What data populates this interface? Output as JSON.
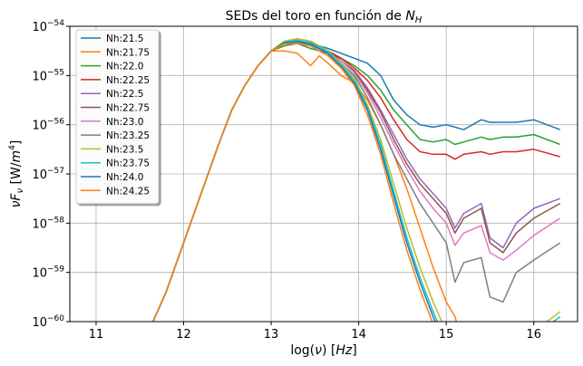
{
  "chart_data": {
    "type": "line",
    "title_parts": [
      "SEDs del toro en función de ",
      "N",
      "H"
    ],
    "xlabel_parts": [
      "log(",
      "ν",
      ") [",
      "Hz",
      "]"
    ],
    "ylabel_parts": [
      "ν",
      "F",
      "ν",
      " [W/",
      "m",
      "4",
      "]"
    ],
    "xlim": [
      10.7,
      16.5
    ],
    "ylim_exp": [
      -60,
      -54
    ],
    "y_scale": "log",
    "grid": true,
    "legend_position": "upper-left",
    "x_ticks": [
      "11",
      "12",
      "13",
      "14",
      "15",
      "16"
    ],
    "x_tick_values": [
      11,
      12,
      13,
      14,
      15,
      16
    ],
    "y_ticks": [
      {
        "base": "10",
        "exp": "−54",
        "value": -54
      },
      {
        "base": "10",
        "exp": "−55",
        "value": -55
      },
      {
        "base": "10",
        "exp": "−56",
        "value": -56
      },
      {
        "base": "10",
        "exp": "−57",
        "value": -57
      },
      {
        "base": "10",
        "exp": "−58",
        "value": -58
      },
      {
        "base": "10",
        "exp": "−59",
        "value": -59
      },
      {
        "base": "10",
        "exp": "−60",
        "value": -60
      }
    ],
    "x": [
      11.6,
      11.8,
      12.0,
      12.2,
      12.4,
      12.55,
      12.7,
      12.85,
      13.0,
      13.15,
      13.3,
      13.45,
      13.55,
      13.65,
      13.8,
      13.95,
      14.1,
      14.25,
      14.4,
      14.55,
      14.7,
      14.85,
      15.0,
      15.1,
      15.2,
      15.4,
      15.5,
      15.65,
      15.8,
      16.0,
      16.3
    ],
    "series": [
      {
        "name": "Nh:21.5",
        "color": "#1f77b4",
        "values": [
          -60.2,
          -59.4,
          -58.4,
          -57.4,
          -56.4,
          -55.7,
          -55.2,
          -54.8,
          -54.5,
          -54.35,
          -54.3,
          -54.35,
          -54.4,
          -54.45,
          -54.55,
          -54.65,
          -54.75,
          -55.0,
          -55.5,
          -55.8,
          -56.0,
          -56.05,
          -56.0,
          -56.05,
          -56.1,
          -55.9,
          -55.95,
          -55.95,
          -55.95,
          -55.9,
          -56.1
        ]
      },
      {
        "name": "Nh:21.75",
        "color": "#ff7f0e",
        "values": [
          -60.2,
          -59.4,
          -58.4,
          -57.4,
          -56.4,
          -55.7,
          -55.2,
          -54.8,
          -54.5,
          -54.5,
          -54.55,
          -54.8,
          -54.6,
          -54.75,
          -55.0,
          -55.15,
          -55.5,
          -56.0,
          -56.6,
          -57.3,
          -58.1,
          -58.9,
          -59.6,
          -59.9,
          -60.5,
          -61.0,
          -61.0,
          -61.0,
          -61.0,
          -61.0,
          -61.0
        ]
      },
      {
        "name": "Nh:22.0",
        "color": "#2ca02c",
        "values": [
          -60.2,
          -59.4,
          -58.4,
          -57.4,
          -56.4,
          -55.7,
          -55.2,
          -54.8,
          -54.5,
          -54.4,
          -54.35,
          -54.45,
          -54.5,
          -54.55,
          -54.65,
          -54.8,
          -55.0,
          -55.3,
          -55.7,
          -56.0,
          -56.3,
          -56.35,
          -56.3,
          -56.4,
          -56.35,
          -56.25,
          -56.3,
          -56.25,
          -56.25,
          -56.2,
          -56.4
        ]
      },
      {
        "name": "Nh:22.25",
        "color": "#d62728",
        "values": [
          -60.2,
          -59.4,
          -58.4,
          -57.4,
          -56.4,
          -55.7,
          -55.2,
          -54.8,
          -54.5,
          -54.35,
          -54.3,
          -54.35,
          -54.45,
          -54.5,
          -54.65,
          -54.85,
          -55.1,
          -55.45,
          -55.9,
          -56.3,
          -56.55,
          -56.6,
          -56.6,
          -56.7,
          -56.6,
          -56.55,
          -56.6,
          -56.55,
          -56.55,
          -56.5,
          -56.65
        ]
      },
      {
        "name": "Nh:22.5",
        "color": "#9467bd",
        "values": [
          -60.2,
          -59.4,
          -58.4,
          -57.4,
          -56.4,
          -55.7,
          -55.2,
          -54.8,
          -54.5,
          -54.35,
          -54.3,
          -54.35,
          -54.45,
          -54.5,
          -54.7,
          -54.9,
          -55.25,
          -55.7,
          -56.2,
          -56.7,
          -57.1,
          -57.4,
          -57.7,
          -58.1,
          -57.8,
          -57.6,
          -58.3,
          -58.5,
          -58.0,
          -57.7,
          -57.5
        ]
      },
      {
        "name": "Nh:22.75",
        "color": "#8c564b",
        "values": [
          -60.2,
          -59.4,
          -58.4,
          -57.4,
          -56.4,
          -55.7,
          -55.2,
          -54.8,
          -54.5,
          -54.35,
          -54.3,
          -54.35,
          -54.45,
          -54.5,
          -54.7,
          -54.9,
          -55.3,
          -55.75,
          -56.3,
          -56.8,
          -57.2,
          -57.5,
          -57.8,
          -58.2,
          -57.9,
          -57.7,
          -58.4,
          -58.6,
          -58.2,
          -57.9,
          -57.6
        ]
      },
      {
        "name": "Nh:23.0",
        "color": "#e377c2",
        "values": [
          -60.2,
          -59.4,
          -58.4,
          -57.4,
          -56.4,
          -55.7,
          -55.2,
          -54.8,
          -54.5,
          -54.35,
          -54.3,
          -54.35,
          -54.45,
          -54.55,
          -54.7,
          -54.95,
          -55.35,
          -55.85,
          -56.4,
          -56.9,
          -57.35,
          -57.7,
          -58.0,
          -58.45,
          -58.2,
          -58.05,
          -58.6,
          -58.75,
          -58.55,
          -58.25,
          -57.9
        ]
      },
      {
        "name": "Nh:23.25",
        "color": "#7f7f7f",
        "values": [
          -60.2,
          -59.4,
          -58.4,
          -57.4,
          -56.4,
          -55.7,
          -55.2,
          -54.8,
          -54.5,
          -54.35,
          -54.3,
          -54.35,
          -54.45,
          -54.55,
          -54.75,
          -55.0,
          -55.45,
          -56.0,
          -56.6,
          -57.1,
          -57.6,
          -58.0,
          -58.4,
          -59.2,
          -58.8,
          -58.7,
          -59.5,
          -59.6,
          -59.0,
          -58.75,
          -58.4
        ]
      },
      {
        "name": "Nh:23.5",
        "color": "#bcbd22",
        "values": [
          -60.2,
          -59.4,
          -58.4,
          -57.4,
          -56.4,
          -55.7,
          -55.2,
          -54.8,
          -54.5,
          -54.3,
          -54.25,
          -54.3,
          -54.4,
          -54.5,
          -54.75,
          -55.05,
          -55.6,
          -56.3,
          -57.2,
          -58.1,
          -58.9,
          -59.6,
          -60.2,
          -60.8,
          -61.0,
          -61.0,
          -61.0,
          -61.0,
          -61.0,
          -60.2,
          -59.8
        ]
      },
      {
        "name": "Nh:23.75",
        "color": "#17becf",
        "values": [
          -60.2,
          -59.4,
          -58.4,
          -57.4,
          -56.4,
          -55.7,
          -55.2,
          -54.8,
          -54.5,
          -54.32,
          -54.28,
          -54.33,
          -54.42,
          -54.52,
          -54.78,
          -55.1,
          -55.65,
          -56.4,
          -57.35,
          -58.3,
          -59.1,
          -59.8,
          -60.4,
          -61.0,
          -61.0,
          -61.0,
          -61.0,
          -61.0,
          -61.0,
          -60.3,
          -59.9
        ]
      },
      {
        "name": "Nh:24.0",
        "color": "#1f77b4",
        "values": [
          -60.2,
          -59.4,
          -58.4,
          -57.4,
          -56.4,
          -55.7,
          -55.2,
          -54.8,
          -54.5,
          -54.34,
          -54.32,
          -54.37,
          -54.46,
          -54.56,
          -54.82,
          -55.15,
          -55.7,
          -56.5,
          -57.45,
          -58.4,
          -59.2,
          -59.9,
          -60.5,
          -61.0,
          -61.0,
          -61.0,
          -61.0,
          -61.0,
          -61.0,
          -60.4,
          -60.0
        ]
      },
      {
        "name": "Nh:24.25",
        "color": "#ff7f0e",
        "values": [
          -60.2,
          -59.4,
          -58.4,
          -57.4,
          -56.4,
          -55.7,
          -55.2,
          -54.8,
          -54.5,
          -54.36,
          -54.35,
          -54.4,
          -54.5,
          -54.6,
          -54.85,
          -55.2,
          -55.8,
          -56.6,
          -57.6,
          -58.55,
          -59.35,
          -60.05,
          -60.6,
          -61.0,
          -61.0,
          -61.0,
          -61.0,
          -61.0,
          -61.0,
          -60.6,
          -60.2
        ]
      }
    ]
  }
}
